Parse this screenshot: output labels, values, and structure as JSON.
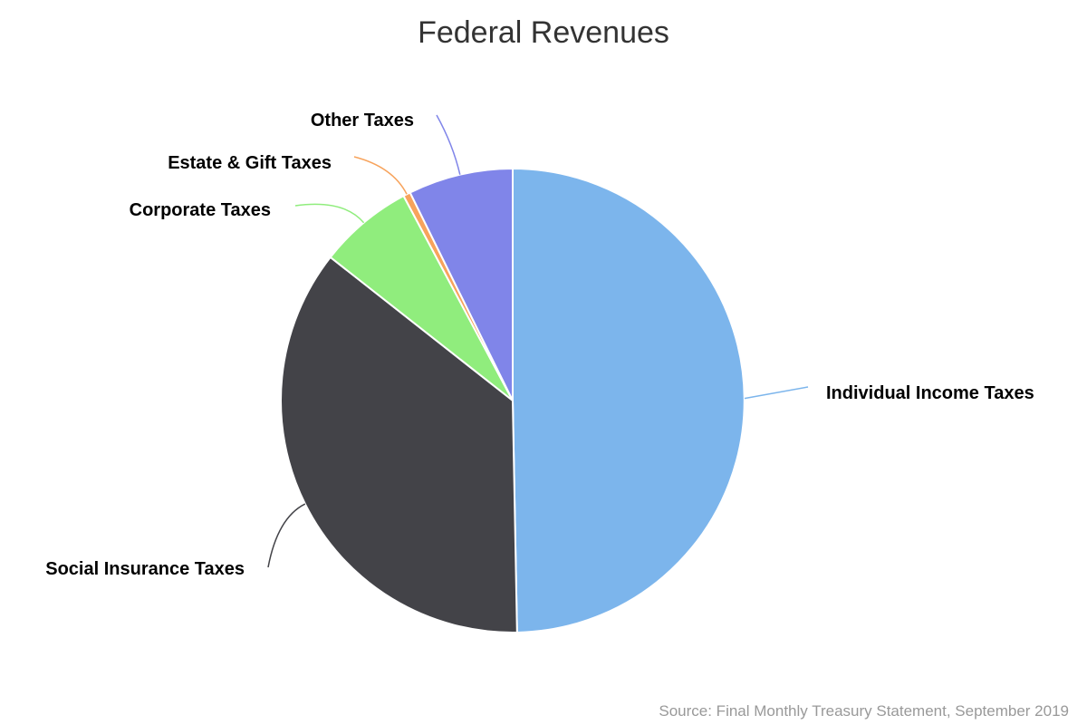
{
  "chart_data": {
    "type": "pie",
    "title": "Federal Revenues",
    "source": "Source: Final Monthly Treasury Statement, September 2019",
    "unit": "share of total revenue (estimated from slice angles)",
    "slices": [
      {
        "label": "Individual Income Taxes",
        "value": 49.7,
        "color": "#7cb5ec"
      },
      {
        "label": "Social Insurance Taxes",
        "value": 35.9,
        "color": "#434348"
      },
      {
        "label": "Corporate Taxes",
        "value": 6.6,
        "color": "#90ed7d"
      },
      {
        "label": "Estate & Gift Taxes",
        "value": 0.5,
        "color": "#f7a35c"
      },
      {
        "label": "Other Taxes",
        "value": 7.3,
        "color": "#8085e9"
      }
    ],
    "start_angle_deg": 0,
    "direction": "clockwise",
    "slice_border_color": "#ffffff"
  }
}
